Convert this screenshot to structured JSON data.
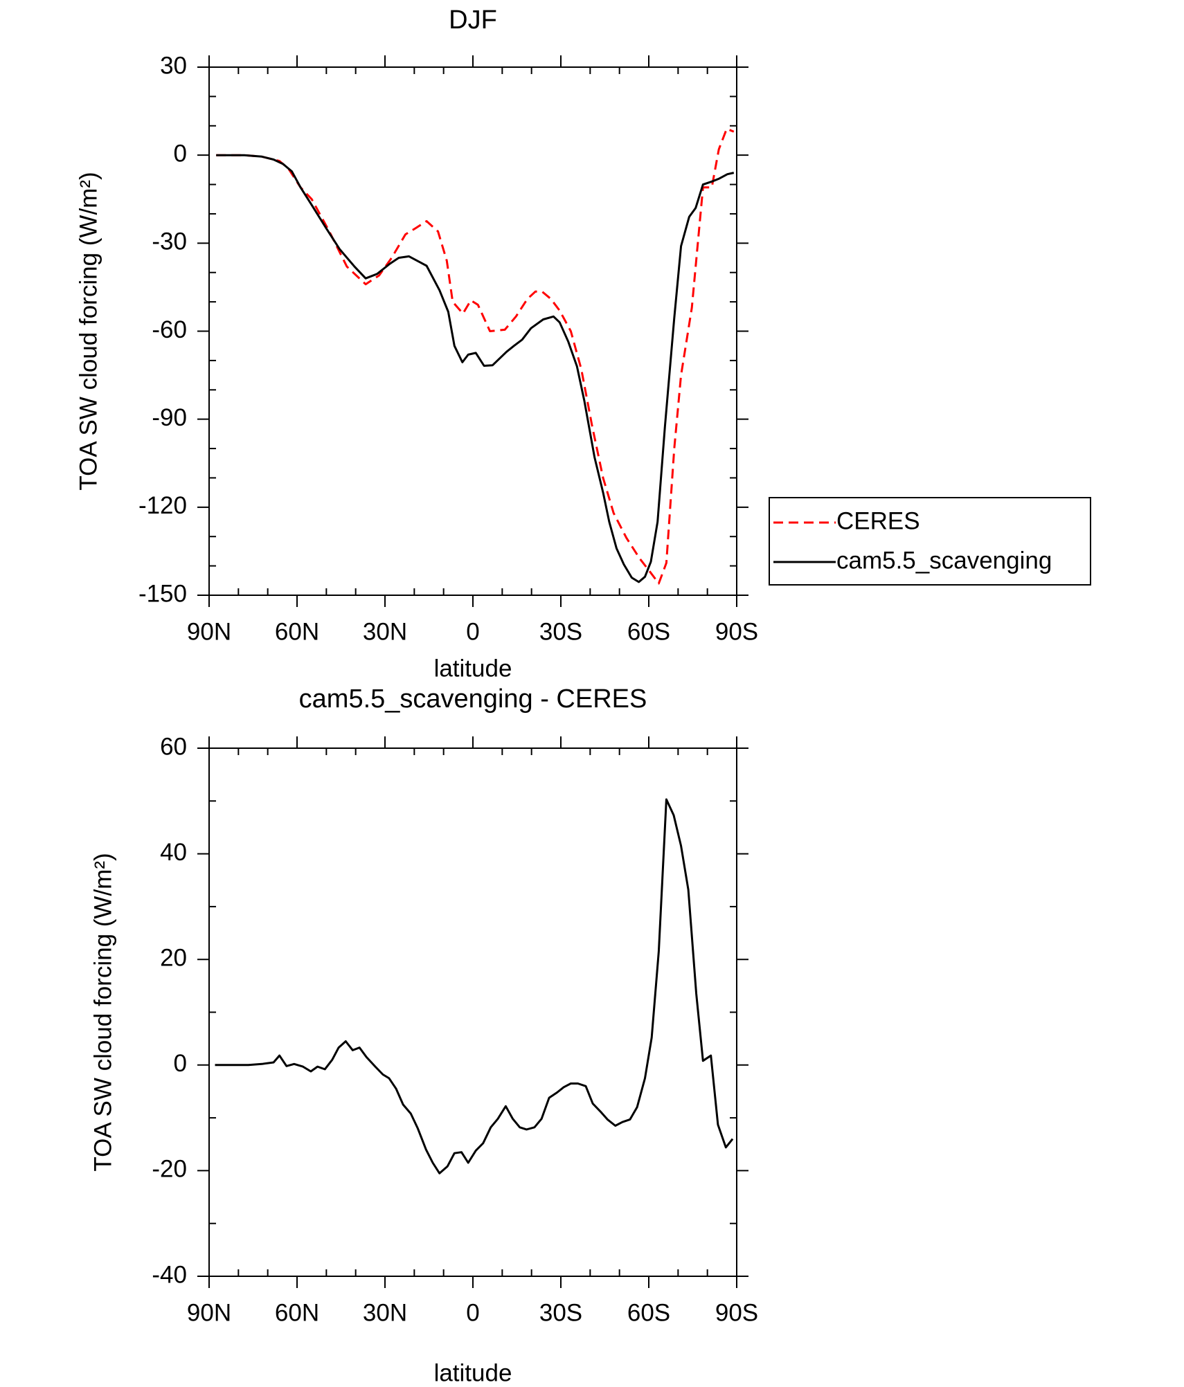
{
  "chart_data": [
    {
      "type": "line",
      "title": "DJF",
      "xlabel": "latitude",
      "ylabel": "TOA SW cloud forcing (W/m²)",
      "xlim": [
        90,
        -90
      ],
      "xticks": [
        {
          "value": 90,
          "label": "90N"
        },
        {
          "value": 60,
          "label": "60N"
        },
        {
          "value": 30,
          "label": "30N"
        },
        0,
        {
          "value": -30,
          "label": "30S"
        },
        {
          "value": -60,
          "label": "60S"
        },
        {
          "value": -90,
          "label": "90S"
        }
      ],
      "ylim": [
        -150,
        30
      ],
      "yticks": [
        -150,
        -120,
        -90,
        -60,
        -30,
        0,
        30
      ],
      "legend": "right",
      "series": [
        {
          "name": "CERES",
          "color": "#ff0000",
          "dash": true,
          "x": [
            87.6,
            78,
            72,
            66,
            63,
            58.8,
            55,
            49,
            43,
            36.6,
            32,
            27.7,
            23,
            19.7,
            15.8,
            11.9,
            8.9,
            6.9,
            3.4,
            0.7,
            -1.7,
            -5.8,
            -10.9,
            -14.7,
            -18.6,
            -21.3,
            -23.6,
            -26.6,
            -29.6,
            -33.4,
            -37,
            -40.6,
            -44.4,
            -48,
            -52.4,
            -56.9,
            -60.4,
            -63.4,
            -66,
            -68.7,
            -71,
            -74.7,
            -78.5,
            -81.5,
            -83.9,
            -86.6,
            -89
          ],
          "values": [
            0,
            0,
            -0.5,
            -2,
            -4.5,
            -11,
            -15,
            -26,
            -38,
            -44,
            -41,
            -35,
            -27,
            -25,
            -22.5,
            -26,
            -36,
            -50,
            -54,
            -49.5,
            -51,
            -60,
            -59.5,
            -55,
            -49,
            -46.5,
            -46.5,
            -49,
            -53,
            -60,
            -73,
            -92,
            -110,
            -122,
            -130.5,
            -137.5,
            -142,
            -146,
            -139,
            -100,
            -75,
            -52,
            -11,
            -11,
            2,
            9,
            8
          ]
        },
        {
          "name": "cam5.5_scavenging",
          "color": "#000000",
          "dash": false,
          "x": [
            87.6,
            78,
            72,
            68,
            64.8,
            61.8,
            58.8,
            55,
            50,
            45.5,
            40.4,
            36.6,
            32.7,
            28.3,
            25.3,
            21.8,
            15.8,
            11.4,
            8.4,
            6.3,
            3.6,
            1.6,
            -1,
            -3.8,
            -6.7,
            -11.5,
            -14,
            -16.8,
            -19.8,
            -24,
            -27.5,
            -29.6,
            -32.5,
            -35.5,
            -38,
            -41.5,
            -44.4,
            -46.5,
            -49,
            -51.5,
            -54.2,
            -56.6,
            -58.7,
            -60.7,
            -63,
            -65.5,
            -68.7,
            -71,
            -73.8,
            -76,
            -78.5,
            -81.5,
            -84,
            -86.8,
            -89
          ],
          "values": [
            0,
            0,
            -0.5,
            -1.5,
            -3,
            -5.5,
            -11,
            -17,
            -25,
            -32,
            -38,
            -42,
            -40.5,
            -37,
            -35,
            -34.5,
            -37.7,
            -46,
            -53.4,
            -65,
            -70.6,
            -68,
            -67.4,
            -71.8,
            -71.6,
            -67,
            -65,
            -62.9,
            -59,
            -56,
            -55,
            -57,
            -63.5,
            -72,
            -83.7,
            -103,
            -115,
            -125,
            -134,
            -139.5,
            -144,
            -145.5,
            -143.7,
            -138.6,
            -125,
            -92.6,
            -55.5,
            -31,
            -21,
            -18,
            -10,
            -9,
            -8,
            -6.5,
            -6
          ]
        }
      ]
    },
    {
      "type": "line",
      "title": "cam5.5_scavenging - CERES",
      "xlabel": "latitude",
      "ylabel": "TOA SW cloud forcing (W/m²)",
      "xlim": [
        90,
        -90
      ],
      "xticks": [
        {
          "value": 90,
          "label": "90N"
        },
        {
          "value": 60,
          "label": "60N"
        },
        {
          "value": 30,
          "label": "30N"
        },
        0,
        {
          "value": -30,
          "label": "30S"
        },
        {
          "value": -60,
          "label": "60S"
        },
        {
          "value": -90,
          "label": "90S"
        }
      ],
      "ylim": [
        -40,
        60
      ],
      "yticks": [
        -40,
        -20,
        0,
        20,
        40,
        60
      ],
      "series": [
        {
          "color": "#000000",
          "dash": false,
          "x": [
            88,
            76.6,
            72,
            68,
            66,
            63.6,
            61,
            58,
            55.3,
            53,
            50.5,
            48,
            45.8,
            43.4,
            41,
            38.7,
            36.3,
            33.3,
            30.7,
            28.6,
            26.2,
            23.8,
            21.2,
            18.8,
            16,
            13.7,
            11.4,
            8.7,
            6.3,
            3.9,
            1.6,
            -1,
            -3.5,
            -6.1,
            -8.5,
            -11.2,
            -13.6,
            -16,
            -18.3,
            -21,
            -23.4,
            -26,
            -28.7,
            -31,
            -33.4,
            -35.8,
            -38.5,
            -40.9,
            -43.5,
            -45.9,
            -48.6,
            -51,
            -53.6,
            -56,
            -58.7,
            -61,
            -63.4,
            -66,
            -68.5,
            -71,
            -73.5,
            -76.2,
            -78.5,
            -81.2,
            -83.6,
            -86.3,
            -88.6
          ],
          "values": [
            0,
            0,
            0.2,
            0.5,
            1.8,
            -0.2,
            0.2,
            -0.3,
            -1.2,
            -0.3,
            -0.8,
            1,
            3.3,
            4.5,
            2.8,
            3.3,
            1.5,
            -0.3,
            -1.8,
            -2.5,
            -4.5,
            -7.5,
            -9.2,
            -12,
            -16,
            -18.5,
            -20.5,
            -19.2,
            -16.7,
            -16.5,
            -18.5,
            -16.2,
            -14.8,
            -11.8,
            -10.2,
            -7.8,
            -10.2,
            -11.8,
            -12.2,
            -11.8,
            -10.2,
            -6.2,
            -5.2,
            -4.2,
            -3.5,
            -3.5,
            -4,
            -7.3,
            -8.8,
            -10.3,
            -11.5,
            -10.8,
            -10.3,
            -8,
            -2.5,
            5.2,
            21.5,
            50.3,
            47.3,
            41.5,
            33.2,
            13.5,
            0.8,
            1.8,
            -11.3,
            -15.6,
            -14
          ]
        }
      ]
    }
  ]
}
